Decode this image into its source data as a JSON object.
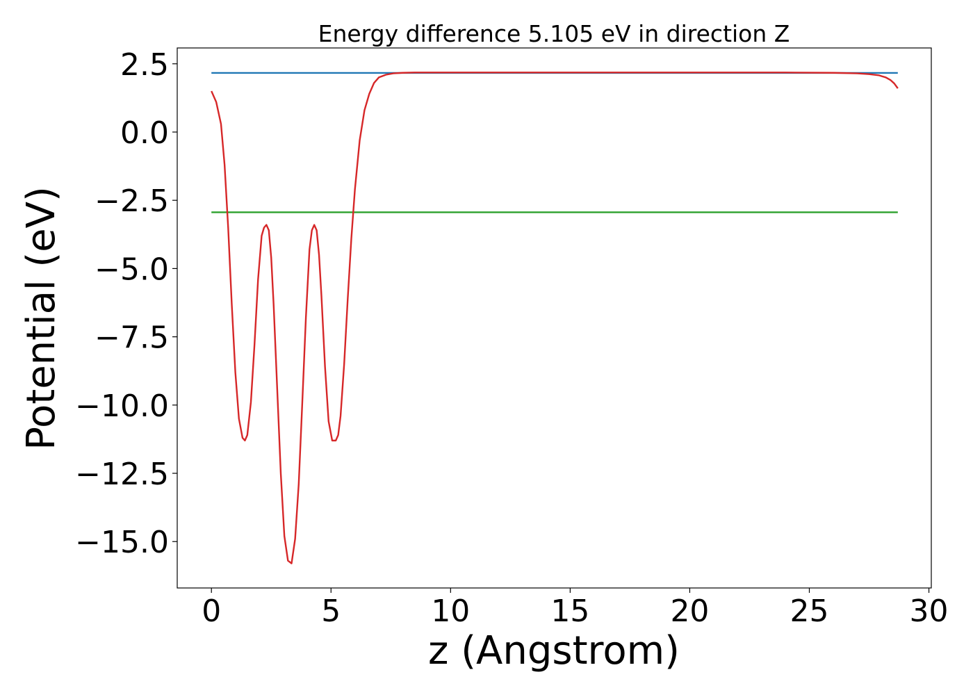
{
  "chart_data": {
    "type": "line",
    "title": "Energy difference 5.105 eV in direction Z",
    "xlabel": "z (Angstrom)",
    "ylabel": "Potential (eV)",
    "xlim": [
      -1.43,
      30.1
    ],
    "ylim": [
      -16.7,
      3.08
    ],
    "x_ticks": [
      0,
      5,
      10,
      15,
      20,
      25,
      30
    ],
    "x_tick_labels": [
      "0",
      "5",
      "10",
      "15",
      "20",
      "25",
      "30"
    ],
    "y_ticks": [
      2.5,
      0.0,
      -2.5,
      -5.0,
      -7.5,
      -10.0,
      -12.5,
      -15.0
    ],
    "y_tick_labels": [
      "2.5",
      "0.0",
      "−2.5",
      "−5.0",
      "−7.5",
      "−10.0",
      "−12.5",
      "−15.0"
    ],
    "grid": false,
    "legend": "none",
    "series": [
      {
        "color": "#d62728",
        "x": [
          0.0,
          0.2,
          0.4,
          0.55,
          0.7,
          0.85,
          1.0,
          1.15,
          1.3,
          1.4,
          1.5,
          1.65,
          1.8,
          1.95,
          2.1,
          2.2,
          2.3,
          2.4,
          2.5,
          2.6,
          2.75,
          2.9,
          3.05,
          3.2,
          3.35,
          3.5,
          3.65,
          3.8,
          3.95,
          4.1,
          4.2,
          4.3,
          4.4,
          4.5,
          4.6,
          4.75,
          4.9,
          5.05,
          5.2,
          5.3,
          5.4,
          5.55,
          5.7,
          5.85,
          6.0,
          6.2,
          6.4,
          6.6,
          6.8,
          7.0,
          7.3,
          7.6,
          8.0,
          8.5,
          9.0,
          10.0,
          12.0,
          15.0,
          18.0,
          21.0,
          24.0,
          26.0,
          27.0,
          27.5,
          27.9,
          28.2,
          28.4,
          28.55,
          28.7
        ],
        "y": [
          1.5,
          1.1,
          0.3,
          -1.2,
          -3.5,
          -6.3,
          -8.8,
          -10.5,
          -11.2,
          -11.3,
          -11.1,
          -9.9,
          -7.8,
          -5.4,
          -3.8,
          -3.5,
          -3.4,
          -3.6,
          -4.6,
          -6.3,
          -9.4,
          -12.5,
          -14.8,
          -15.7,
          -15.8,
          -14.9,
          -12.9,
          -9.9,
          -6.8,
          -4.3,
          -3.6,
          -3.4,
          -3.6,
          -4.5,
          -6.0,
          -8.6,
          -10.6,
          -11.3,
          -11.3,
          -11.1,
          -10.4,
          -8.5,
          -6.1,
          -3.9,
          -2.1,
          -0.3,
          0.8,
          1.4,
          1.8,
          2.0,
          2.1,
          2.15,
          2.17,
          2.18,
          2.18,
          2.18,
          2.18,
          2.18,
          2.18,
          2.18,
          2.18,
          2.17,
          2.15,
          2.12,
          2.08,
          2.0,
          1.9,
          1.78,
          1.6
        ]
      },
      {
        "color": "#1f77b4",
        "x": [
          0.0,
          28.7
        ],
        "y": [
          2.165,
          2.165
        ]
      },
      {
        "color": "#2ca02c",
        "x": [
          0.0,
          28.7
        ],
        "y": [
          -2.94,
          -2.94
        ]
      }
    ]
  }
}
